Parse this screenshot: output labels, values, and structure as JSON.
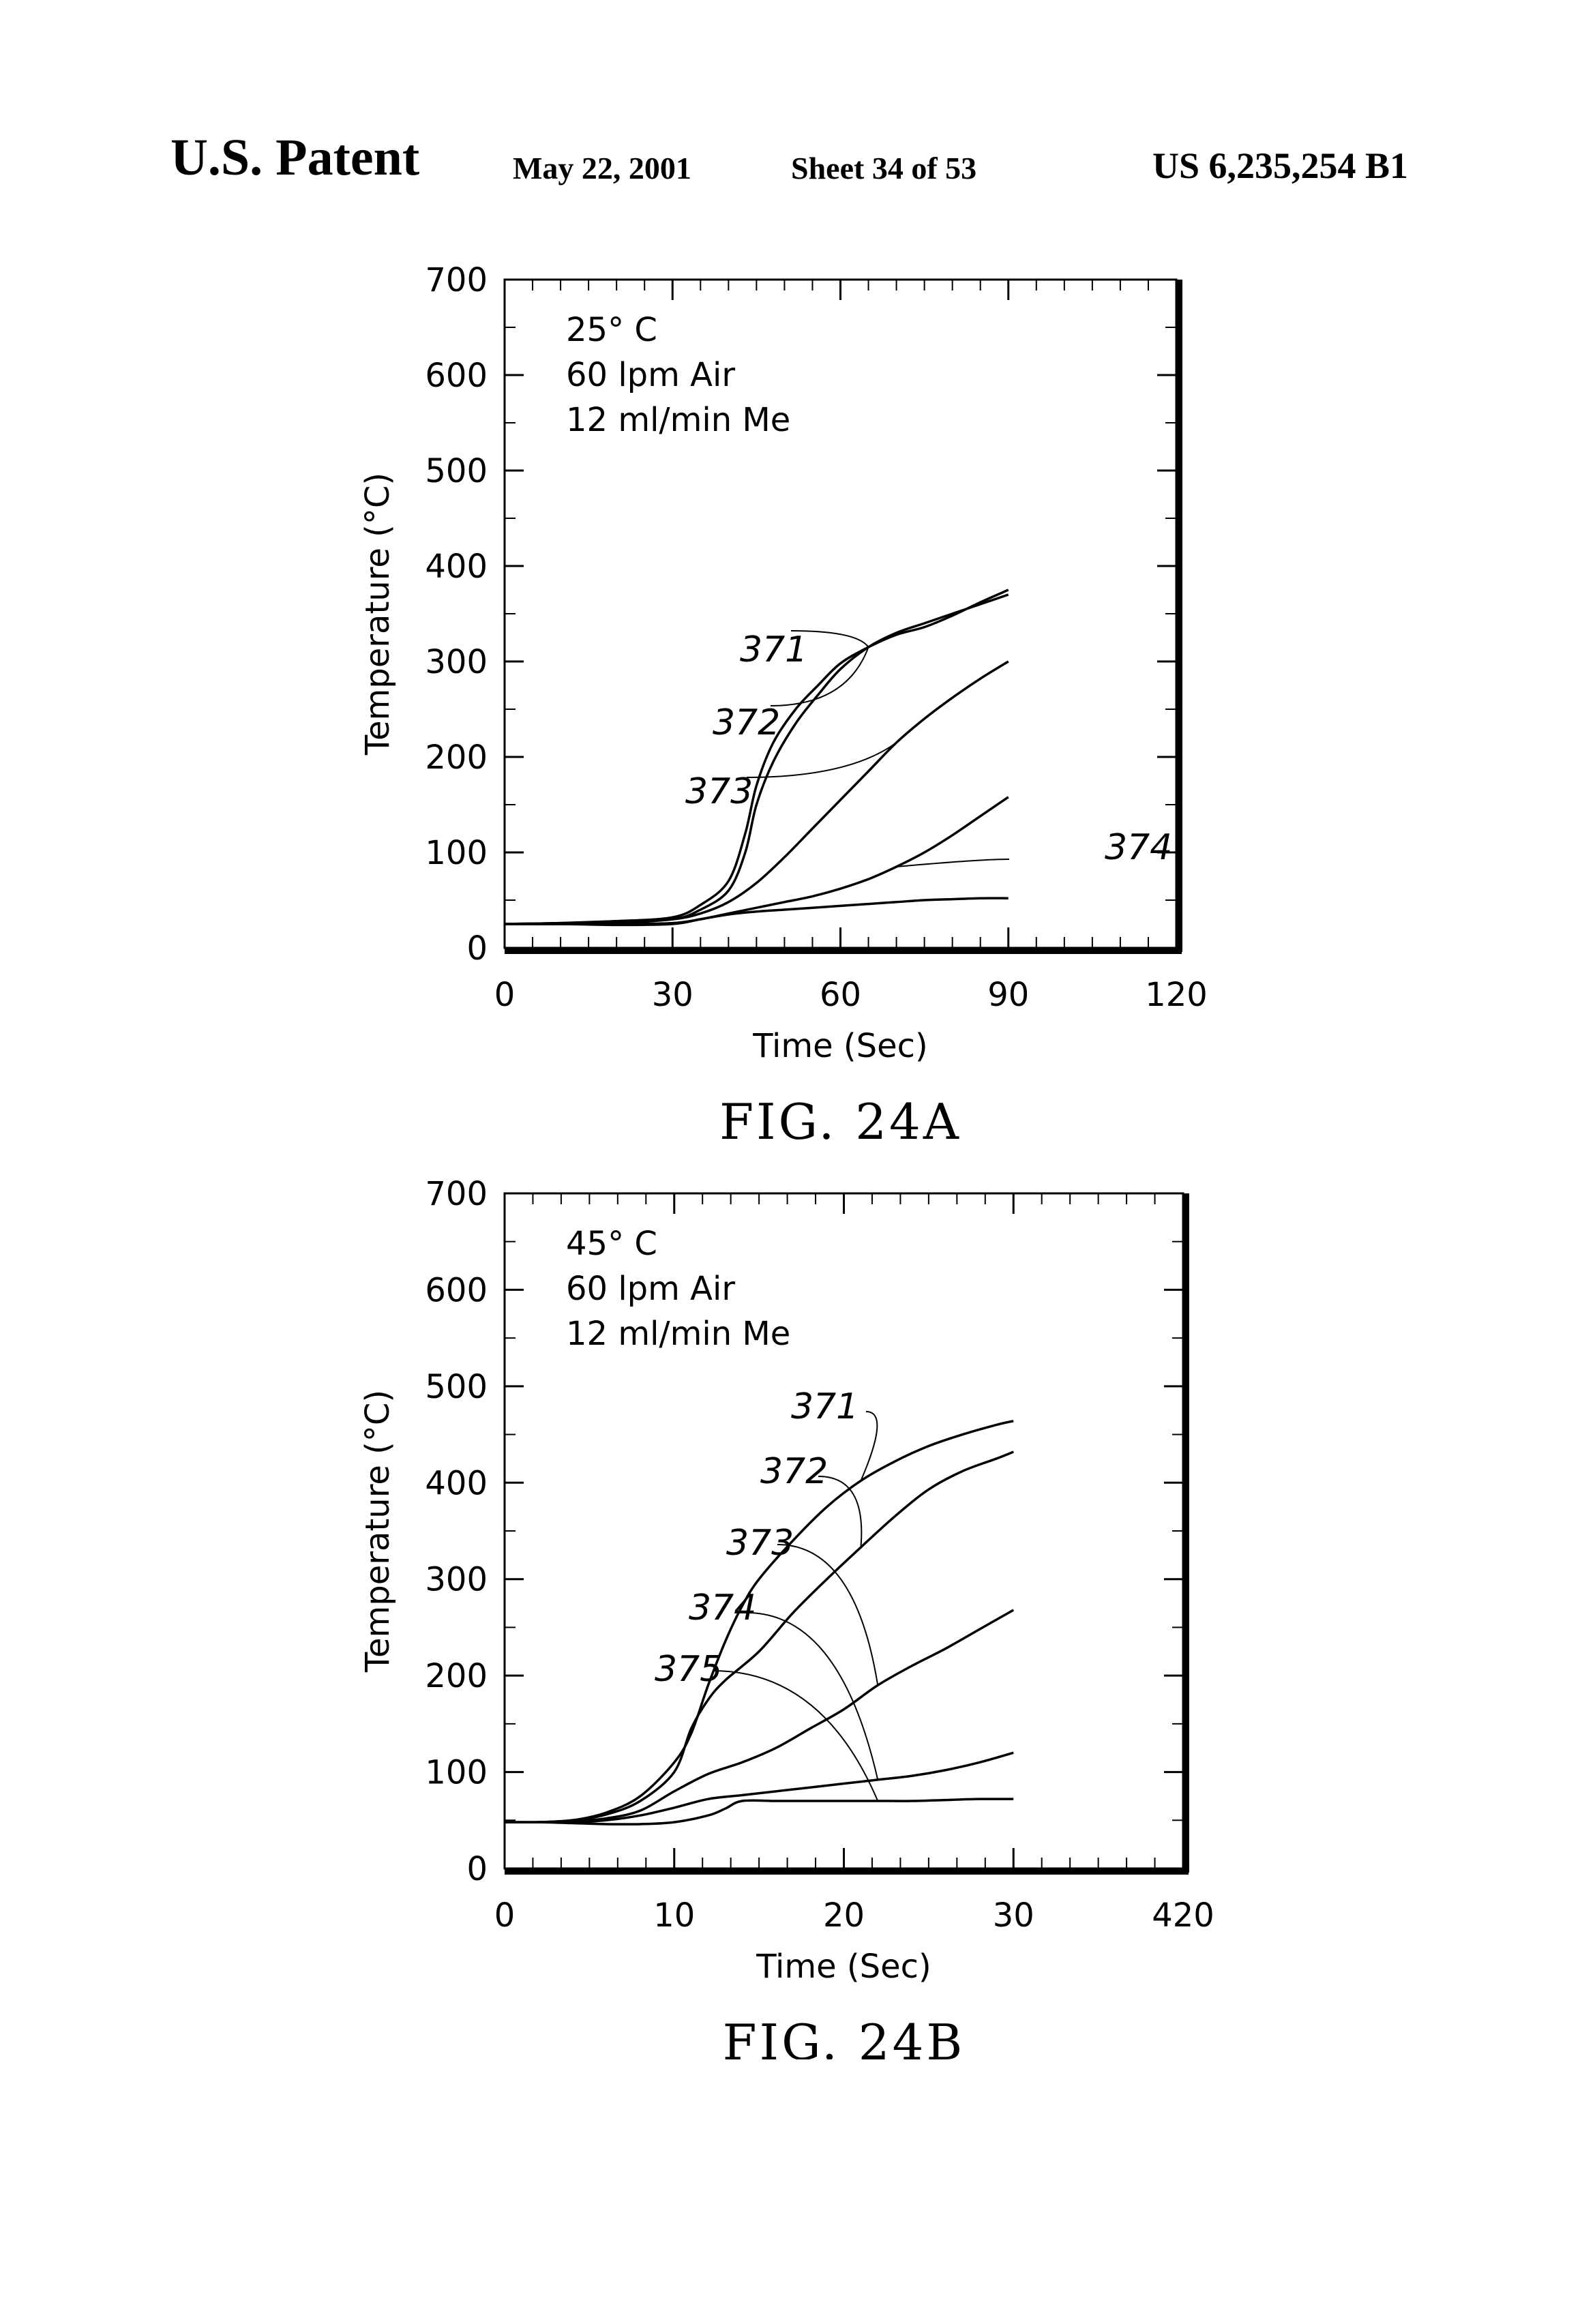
{
  "header": {
    "left": "U.S. Patent",
    "date": "May 22, 2001",
    "sheet": "Sheet 34 of 53",
    "patent_number": "US 6,235,254 B1"
  },
  "chart_data": [
    {
      "type": "line",
      "caption": "FIG. 24A",
      "xlabel": "Time (Sec)",
      "ylabel": "Temperature (°C)",
      "xlim": [
        0,
        120
      ],
      "ylim": [
        0,
        700
      ],
      "x_ticks": [
        "0",
        "30",
        "60",
        "90",
        "120"
      ],
      "y_ticks": [
        "0",
        "100",
        "200",
        "300",
        "400",
        "500",
        "600",
        "700"
      ],
      "conditions": [
        "25° C",
        "60  lpm   Air",
        "12  ml/min  Me"
      ],
      "series": [
        {
          "name": "371",
          "points": [
            [
              0,
              25
            ],
            [
              10,
              26
            ],
            [
              20,
              28
            ],
            [
              30,
              32
            ],
            [
              35,
              45
            ],
            [
              40,
              70
            ],
            [
              43,
              120
            ],
            [
              45,
              170
            ],
            [
              48,
              215
            ],
            [
              52,
              250
            ],
            [
              56,
              275
            ],
            [
              60,
              298
            ],
            [
              65,
              315
            ],
            [
              70,
              328
            ],
            [
              75,
              336
            ],
            [
              80,
              348
            ],
            [
              85,
              362
            ],
            [
              90,
              375
            ]
          ]
        },
        {
          "name": "372",
          "points": [
            [
              0,
              25
            ],
            [
              10,
              26
            ],
            [
              20,
              28
            ],
            [
              30,
              30
            ],
            [
              35,
              40
            ],
            [
              40,
              60
            ],
            [
              43,
              100
            ],
            [
              45,
              150
            ],
            [
              48,
              195
            ],
            [
              52,
              235
            ],
            [
              56,
              265
            ],
            [
              60,
              292
            ],
            [
              65,
              315
            ],
            [
              70,
              330
            ],
            [
              75,
              340
            ],
            [
              80,
              350
            ],
            [
              85,
              360
            ],
            [
              90,
              370
            ]
          ]
        },
        {
          "name": "373",
          "points": [
            [
              0,
              25
            ],
            [
              10,
              25
            ],
            [
              20,
              26
            ],
            [
              30,
              30
            ],
            [
              35,
              36
            ],
            [
              40,
              48
            ],
            [
              45,
              68
            ],
            [
              50,
              95
            ],
            [
              55,
              125
            ],
            [
              60,
              155
            ],
            [
              65,
              185
            ],
            [
              70,
              215
            ],
            [
              75,
              240
            ],
            [
              80,
              262
            ],
            [
              85,
              282
            ],
            [
              90,
              300
            ]
          ]
        },
        {
          "name": "374",
          "points": [
            [
              0,
              25
            ],
            [
              10,
              25
            ],
            [
              20,
              25
            ],
            [
              30,
              26
            ],
            [
              35,
              30
            ],
            [
              40,
              36
            ],
            [
              45,
              42
            ],
            [
              50,
              48
            ],
            [
              55,
              54
            ],
            [
              60,
              62
            ],
            [
              65,
              72
            ],
            [
              70,
              85
            ],
            [
              75,
              100
            ],
            [
              80,
              118
            ],
            [
              85,
              138
            ],
            [
              90,
              158
            ]
          ]
        },
        {
          "name": "",
          "points": [
            [
              0,
              25
            ],
            [
              10,
              25
            ],
            [
              20,
              24
            ],
            [
              30,
              25
            ],
            [
              35,
              30
            ],
            [
              40,
              35
            ],
            [
              45,
              38
            ],
            [
              50,
              40
            ],
            [
              55,
              42
            ],
            [
              60,
              44
            ],
            [
              65,
              46
            ],
            [
              70,
              48
            ],
            [
              75,
              50
            ],
            [
              80,
              51
            ],
            [
              85,
              52
            ],
            [
              90,
              52
            ]
          ]
        }
      ]
    },
    {
      "type": "line",
      "caption": "FIG. 24B",
      "xlabel": "Time (Sec)",
      "ylabel": "Temperature (°C)",
      "xlim": [
        0,
        40
      ],
      "ylim": [
        0,
        700
      ],
      "x_ticks": [
        "0",
        "10",
        "20",
        "30",
        "420"
      ],
      "y_ticks": [
        "0",
        "100",
        "200",
        "300",
        "400",
        "500",
        "600",
        "700"
      ],
      "conditions": [
        "45° C",
        "60  lpm   Air",
        "12  ml/min  Me"
      ],
      "series": [
        {
          "name": "371",
          "points": [
            [
              0,
              48
            ],
            [
              2,
              48
            ],
            [
              4,
              50
            ],
            [
              6,
              58
            ],
            [
              8,
              75
            ],
            [
              10,
              110
            ],
            [
              11,
              140
            ],
            [
              12,
              190
            ],
            [
              13,
              235
            ],
            [
              14,
              272
            ],
            [
              15,
              300
            ],
            [
              17,
              340
            ],
            [
              19,
              375
            ],
            [
              21,
              402
            ],
            [
              23,
              422
            ],
            [
              25,
              438
            ],
            [
              27,
              450
            ],
            [
              29,
              460
            ],
            [
              30,
              464
            ]
          ]
        },
        {
          "name": "372",
          "points": [
            [
              0,
              48
            ],
            [
              2,
              48
            ],
            [
              4,
              50
            ],
            [
              6,
              56
            ],
            [
              8,
              70
            ],
            [
              10,
              100
            ],
            [
              11,
              145
            ],
            [
              12,
              175
            ],
            [
              13,
              195
            ],
            [
              15,
              225
            ],
            [
              17,
              265
            ],
            [
              19,
              300
            ],
            [
              21,
              333
            ],
            [
              23,
              365
            ],
            [
              25,
              393
            ],
            [
              27,
              412
            ],
            [
              29,
              425
            ],
            [
              30,
              432
            ]
          ]
        },
        {
          "name": "373",
          "points": [
            [
              0,
              48
            ],
            [
              2,
              48
            ],
            [
              4,
              49
            ],
            [
              6,
              52
            ],
            [
              8,
              60
            ],
            [
              10,
              80
            ],
            [
              12,
              98
            ],
            [
              14,
              110
            ],
            [
              16,
              125
            ],
            [
              18,
              145
            ],
            [
              20,
              165
            ],
            [
              22,
              190
            ],
            [
              24,
              210
            ],
            [
              26,
              228
            ],
            [
              28,
              248
            ],
            [
              30,
              268
            ]
          ]
        },
        {
          "name": "374",
          "points": [
            [
              0,
              48
            ],
            [
              2,
              48
            ],
            [
              4,
              48
            ],
            [
              6,
              50
            ],
            [
              8,
              55
            ],
            [
              10,
              63
            ],
            [
              12,
              72
            ],
            [
              14,
              76
            ],
            [
              16,
              80
            ],
            [
              18,
              84
            ],
            [
              20,
              88
            ],
            [
              22,
              92
            ],
            [
              24,
              96
            ],
            [
              26,
              102
            ],
            [
              28,
              110
            ],
            [
              30,
              120
            ]
          ]
        },
        {
          "name": "375",
          "points": [
            [
              0,
              48
            ],
            [
              2,
              48
            ],
            [
              4,
              47
            ],
            [
              6,
              46
            ],
            [
              8,
              46
            ],
            [
              10,
              48
            ],
            [
              12,
              55
            ],
            [
              13,
              62
            ],
            [
              14,
              70
            ],
            [
              16,
              70
            ],
            [
              18,
              70
            ],
            [
              20,
              70
            ],
            [
              22,
              70
            ],
            [
              24,
              70
            ],
            [
              26,
              71
            ],
            [
              28,
              72
            ],
            [
              30,
              72
            ]
          ]
        }
      ]
    }
  ]
}
